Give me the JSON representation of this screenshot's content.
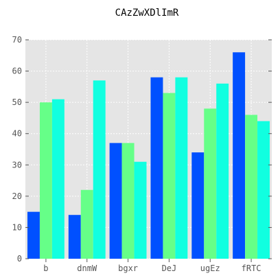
{
  "chart_data": {
    "type": "bar",
    "title": "CAzZwXDlImR",
    "xlabel": "",
    "ylabel": "",
    "categories": [
      "b",
      "dnmW",
      "bgxr",
      "DeJ",
      "ugEz",
      "fRTC"
    ],
    "series": [
      {
        "values": [
          15,
          14,
          37,
          58,
          34,
          66
        ],
        "color": "#0050ff"
      },
      {
        "values": [
          50,
          22,
          37,
          53,
          48,
          46
        ],
        "color": "#66ff88"
      },
      {
        "values": [
          51,
          57,
          31,
          58,
          56,
          44
        ],
        "color": "#11ffe0"
      }
    ],
    "ylim": [
      0,
      70
    ],
    "yticks": [
      0,
      10,
      20,
      30,
      40,
      50,
      60,
      70
    ],
    "grid": true,
    "background": "#e5e5e5",
    "grid_color": "#ffffff",
    "legend": "none"
  }
}
